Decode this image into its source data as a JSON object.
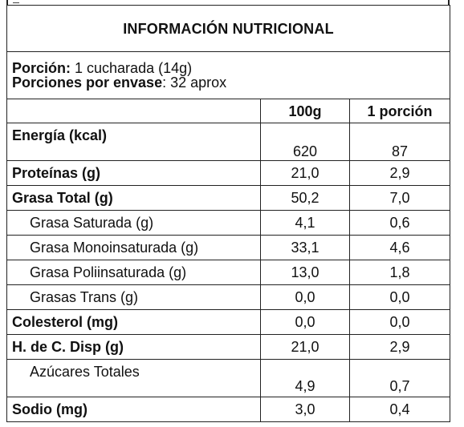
{
  "title": "INFORMACIÓN NUTRICIONAL",
  "portion": {
    "label": "Porción:",
    "value": " 1 cucharada (14g)"
  },
  "servings": {
    "label": "Porciones por envase",
    "value": ": 32 aprox"
  },
  "columns": {
    "per100": "100g",
    "perPortion": "1 porción"
  },
  "rows": [
    {
      "label": "Energía (kcal)",
      "v100": "620",
      "vPortion": "87"
    },
    {
      "label": "Proteínas (g)",
      "v100": "21,0",
      "vPortion": "2,9"
    },
    {
      "label": "Grasa Total (g)",
      "v100": "50,2",
      "vPortion": "7,0"
    },
    {
      "label": "Grasa Saturada (g)",
      "v100": "4,1",
      "vPortion": "0,6"
    },
    {
      "label": "Grasa Monoinsaturada (g)",
      "v100": "33,1",
      "vPortion": "4,6"
    },
    {
      "label": "Grasa Poliinsaturada (g)",
      "v100": "13,0",
      "vPortion": "1,8"
    },
    {
      "label": "Grasas Trans (g)",
      "v100": "0,0",
      "vPortion": "0,0"
    },
    {
      "label": "Colesterol (mg)",
      "v100": "0,0",
      "vPortion": "0,0"
    },
    {
      "label": "H. de C. Disp (g)",
      "v100": "21,0",
      "vPortion": "2,9"
    },
    {
      "label": "Azúcares Totales",
      "v100": "4,9",
      "vPortion": "0,7"
    },
    {
      "label": "Sodio (mg)",
      "v100": "3,0",
      "vPortion": "0,4"
    }
  ]
}
